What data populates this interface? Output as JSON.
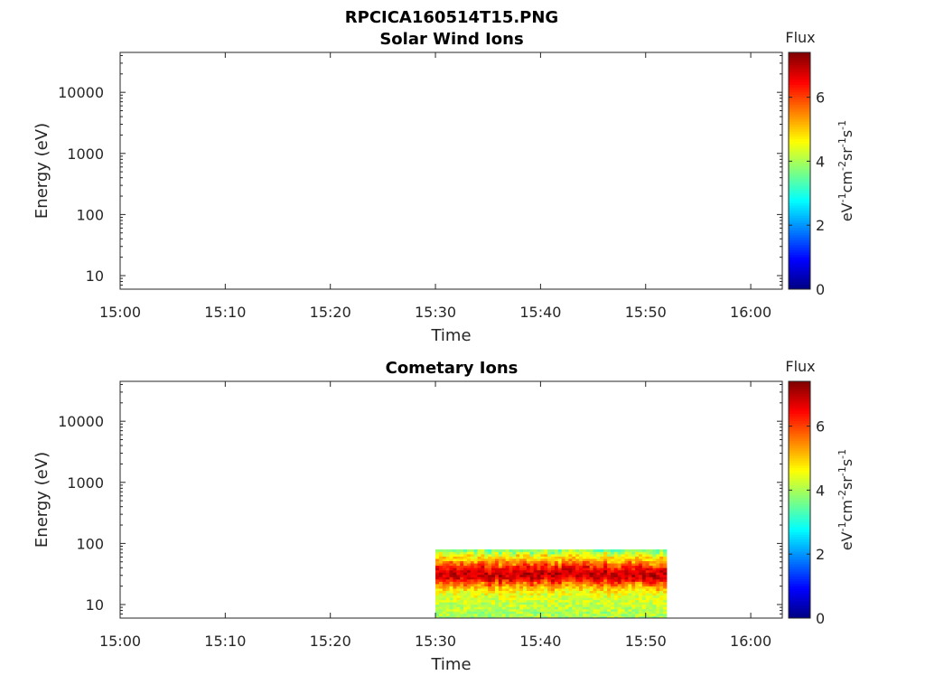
{
  "figure": {
    "title": "RPCICA160514T15.PNG"
  },
  "colorbar": {
    "title": "Flux",
    "label_parts": [
      {
        "t": "eV",
        "sup": false
      },
      {
        "t": "-1",
        "sup": true
      },
      {
        "t": "cm",
        "sup": false
      },
      {
        "t": "-2",
        "sup": true
      },
      {
        "t": "sr",
        "sup": false
      },
      {
        "t": "-1",
        "sup": true
      },
      {
        "t": "s",
        "sup": false
      },
      {
        "t": "-1",
        "sup": true
      }
    ],
    "min": 0,
    "max": 7.4,
    "ticks": [
      0,
      2,
      4,
      6
    ],
    "colormap": "jet"
  },
  "chart_data": [
    {
      "type": "heatmap",
      "title": "Solar Wind Ions",
      "xlabel": "Time",
      "ylabel": "Energy (eV)",
      "x_ticks": [
        "15:00",
        "15:10",
        "15:20",
        "15:30",
        "15:40",
        "15:50",
        "16:00"
      ],
      "xlim": [
        "15:00",
        "16:03"
      ],
      "y_scale": "log",
      "ylim": [
        6,
        45000
      ],
      "y_ticks": [
        10,
        100,
        1000,
        10000
      ],
      "y_tick_labels": [
        "10",
        "100",
        "1000",
        "10000"
      ],
      "regions": []
    },
    {
      "type": "heatmap",
      "title": "Cometary Ions",
      "xlabel": "Time",
      "ylabel": "Energy (eV)",
      "x_ticks": [
        "15:00",
        "15:10",
        "15:20",
        "15:30",
        "15:40",
        "15:50",
        "16:00"
      ],
      "xlim": [
        "15:00",
        "16:03"
      ],
      "y_scale": "log",
      "ylim": [
        6,
        45000
      ],
      "y_ticks": [
        10,
        100,
        1000,
        10000
      ],
      "y_tick_labels": [
        "10",
        "100",
        "1000",
        "10000"
      ],
      "regions": [
        {
          "t_start": "15:30",
          "t_end": "15:52",
          "energy_profile": [
            {
              "energy": 80,
              "flux": 3.5
            },
            {
              "energy": 65,
              "flux": 4.6
            },
            {
              "energy": 50,
              "flux": 5.3
            },
            {
              "energy": 40,
              "flux": 6.4
            },
            {
              "energy": 32,
              "flux": 7.0
            },
            {
              "energy": 26,
              "flux": 6.6
            },
            {
              "energy": 21,
              "flux": 5.4
            },
            {
              "energy": 16,
              "flux": 4.6
            },
            {
              "energy": 12,
              "flux": 4.3
            },
            {
              "energy": 9,
              "flux": 4.2
            },
            {
              "energy": 7,
              "flux": 4.0
            }
          ]
        }
      ]
    }
  ]
}
